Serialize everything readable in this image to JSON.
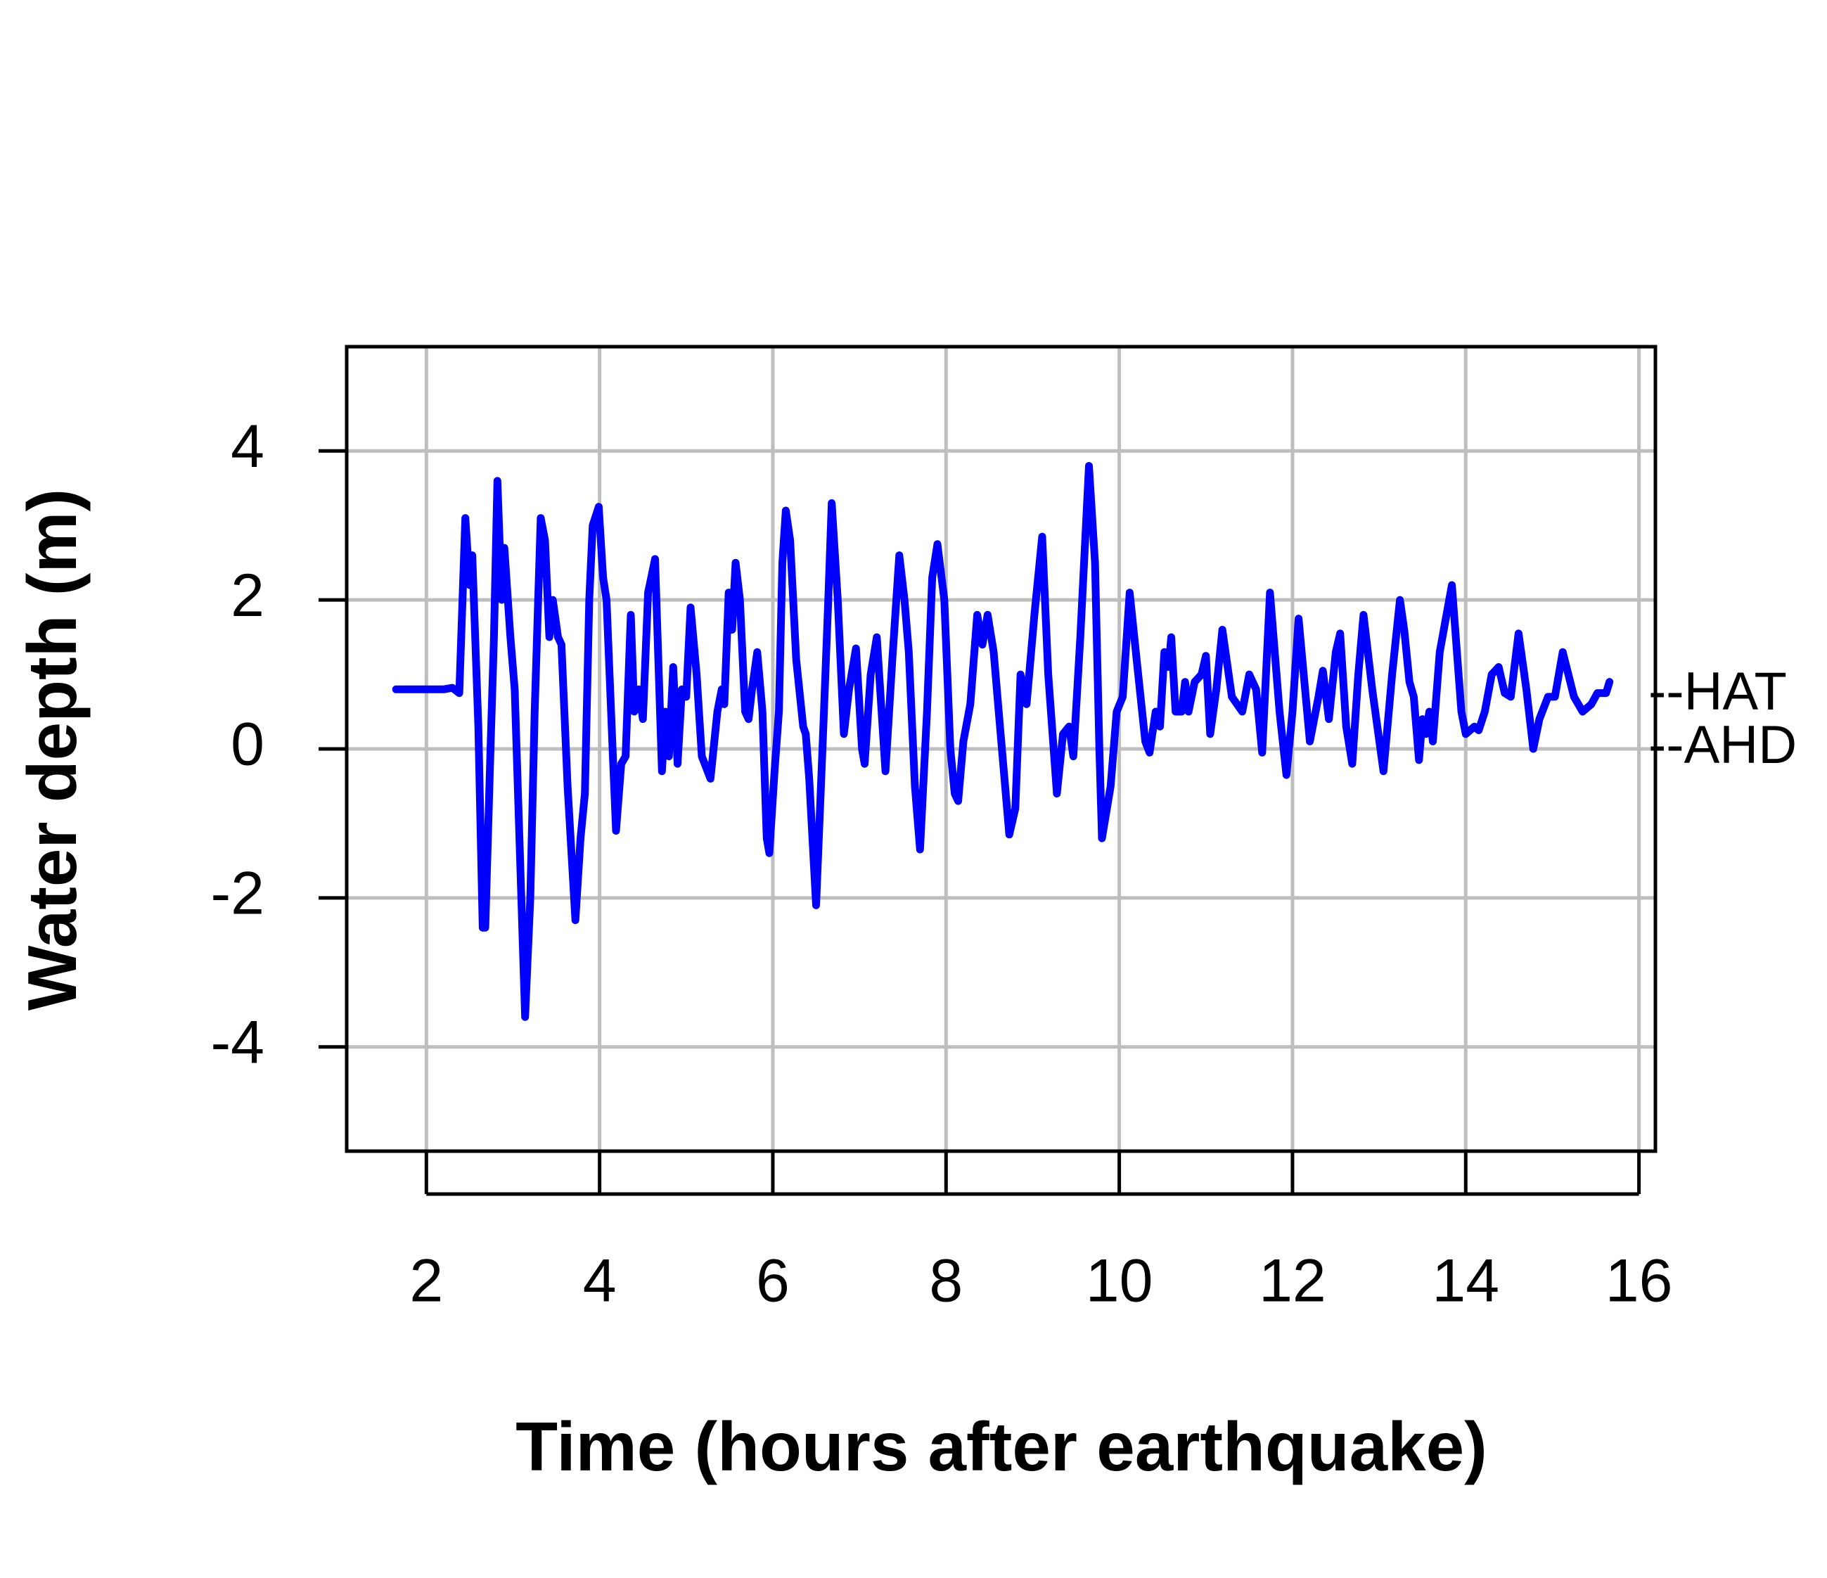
{
  "chart_data": {
    "type": "line",
    "xlabel": "Time (hours after earthquake)",
    "ylabel": "Water depth (m)",
    "xlim": [
      1.08,
      16.19
    ],
    "ylim": [
      -5.4,
      5.4
    ],
    "xticks": [
      2,
      4,
      6,
      8,
      10,
      12,
      14,
      16
    ],
    "yticks": [
      -4,
      -2,
      0,
      2,
      4
    ],
    "grid": true,
    "annotations": [
      {
        "text": "--HAT",
        "y": 0.72
      },
      {
        "text": "--AHD",
        "y": 0
      }
    ],
    "x": [
      1.65,
      2.2,
      2.3,
      2.38,
      2.45,
      2.5,
      2.53,
      2.6,
      2.65,
      2.68,
      2.74,
      2.78,
      2.82,
      2.87,
      2.9,
      2.97,
      3.02,
      3.14,
      3.2,
      3.25,
      3.32,
      3.37,
      3.42,
      3.46,
      3.52,
      3.56,
      3.63,
      3.72,
      3.78,
      3.83,
      3.88,
      3.92,
      3.99,
      4.04,
      4.08,
      4.15,
      4.19,
      4.25,
      4.3,
      4.36,
      4.4,
      4.45,
      4.5,
      4.56,
      4.64,
      4.72,
      4.76,
      4.8,
      4.85,
      4.9,
      4.95,
      5.0,
      5.05,
      5.12,
      5.18,
      5.28,
      5.36,
      5.41,
      5.44,
      5.49,
      5.53,
      5.57,
      5.62,
      5.68,
      5.72,
      5.76,
      5.82,
      5.88,
      5.93,
      5.96,
      6.02,
      6.07,
      6.11,
      6.15,
      6.2,
      6.27,
      6.35,
      6.38,
      6.42,
      6.5,
      6.58,
      6.64,
      6.68,
      6.75,
      6.82,
      6.88,
      6.96,
      7.03,
      7.06,
      7.13,
      7.2,
      7.3,
      7.38,
      7.46,
      7.52,
      7.57,
      7.64,
      7.7,
      7.78,
      7.84,
      7.9,
      7.98,
      8.05,
      8.1,
      8.14,
      8.2,
      8.28,
      8.36,
      8.42,
      8.48,
      8.55,
      8.63,
      8.73,
      8.8,
      8.86,
      8.93,
      9.02,
      9.11,
      9.18,
      9.28,
      9.35,
      9.42,
      9.47,
      9.55,
      9.65,
      9.72,
      9.77,
      9.8,
      9.9,
      9.97,
      10.04,
      10.12,
      10.2,
      10.3,
      10.35,
      10.42,
      10.47,
      10.52,
      10.57,
      10.6,
      10.65,
      10.72,
      10.76,
      10.8,
      10.87,
      10.95,
      11.0,
      11.05,
      11.12,
      11.19,
      11.3,
      11.42,
      11.5,
      11.58,
      11.65,
      11.74,
      11.85,
      11.93,
      12.0,
      12.07,
      12.2,
      12.3,
      12.35,
      12.42,
      12.5,
      12.55,
      12.62,
      12.69,
      12.76,
      12.82,
      12.92,
      13.05,
      13.15,
      13.24,
      13.29,
      13.35,
      13.4,
      13.46,
      13.5,
      13.54,
      13.58,
      13.62,
      13.7,
      13.84,
      13.95,
      14.0,
      14.1,
      14.15,
      14.22,
      14.3,
      14.38,
      14.45,
      14.52,
      14.61,
      14.7,
      14.78,
      14.85,
      14.95,
      15.03,
      15.12,
      15.25,
      15.35,
      15.45,
      15.52,
      15.62,
      15.66
    ],
    "series": [
      {
        "name": "Water depth",
        "color": "#0000ff",
        "values": [
          0.8,
          0.8,
          0.82,
          0.75,
          3.1,
          2.2,
          2.6,
          0.3,
          -2.4,
          -2.4,
          0,
          1.5,
          3.6,
          2.0,
          2.7,
          1.5,
          0.8,
          -3.6,
          -2.0,
          0.5,
          3.1,
          2.8,
          1.5,
          2.0,
          1.5,
          1.4,
          -0.5,
          -2.3,
          -1.2,
          -0.6,
          2.0,
          3.0,
          3.25,
          2.3,
          2.0,
          0,
          -1.1,
          -0.2,
          -0.1,
          1.8,
          0.5,
          0.8,
          0.4,
          2.1,
          2.55,
          -0.3,
          0.5,
          -0.1,
          1.1,
          -0.2,
          0.8,
          0.7,
          1.9,
          1.0,
          -0.1,
          -0.4,
          0.5,
          0.8,
          0.6,
          2.1,
          1.6,
          2.5,
          2.0,
          0.5,
          0.4,
          0.8,
          1.3,
          0.5,
          -1.2,
          -1.4,
          -0.3,
          0.5,
          2.5,
          3.2,
          2.8,
          1.2,
          0.3,
          0.2,
          -0.4,
          -2.1,
          0.2,
          2.0,
          3.3,
          2.0,
          0.2,
          0.8,
          1.35,
          0,
          -0.2,
          1.0,
          1.5,
          -0.3,
          1.2,
          2.6,
          2.0,
          1.3,
          -0.5,
          -1.35,
          0.5,
          2.3,
          2.75,
          2.0,
          0,
          -0.6,
          -0.7,
          0.1,
          0.6,
          1.8,
          1.4,
          1.8,
          1.3,
          0.2,
          -1.15,
          -0.8,
          1.0,
          0.6,
          1.8,
          2.85,
          1.0,
          -0.6,
          0.2,
          0.3,
          -0.1,
          1.5,
          3.8,
          2.5,
          0,
          -1.2,
          -0.5,
          0.5,
          0.7,
          2.1,
          1.2,
          0.1,
          -0.05,
          0.5,
          0.3,
          1.3,
          1.1,
          1.5,
          0.5,
          0.5,
          0.9,
          0.5,
          0.9,
          1.0,
          1.25,
          0.2,
          0.8,
          1.6,
          0.7,
          0.5,
          1.0,
          0.8,
          -0.05,
          2.1,
          0.5,
          -0.35,
          0.5,
          1.75,
          0.1,
          0.7,
          1.05,
          0.4,
          1.3,
          1.55,
          0.3,
          -0.2,
          1.0,
          1.8,
          0.8,
          -0.3,
          1.0,
          2.0,
          1.6,
          0.9,
          0.7,
          -0.15,
          0.4,
          0.2,
          0.5,
          0.1,
          1.3,
          2.2,
          0.5,
          0.2,
          0.3,
          0.25,
          0.5,
          1.0,
          1.1,
          0.75,
          0.7,
          1.55,
          0.8,
          0,
          0.4,
          0.7,
          0.7,
          1.3,
          0.7,
          0.5,
          0.6,
          0.75,
          0.75,
          0.9
        ]
      }
    ]
  }
}
